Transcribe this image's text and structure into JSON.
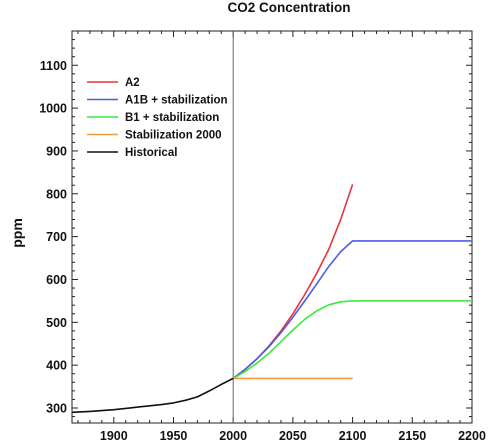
{
  "chart_data": {
    "type": "line",
    "title": "CO2 Concentration",
    "xlabel": "",
    "ylabel": "ppm",
    "xlim": [
      1865,
      2200
    ],
    "ylim": [
      265,
      1180
    ],
    "x_ticks": [
      1900,
      1950,
      2000,
      2050,
      2100,
      2150,
      2200
    ],
    "y_ticks": [
      300,
      400,
      500,
      600,
      700,
      800,
      900,
      1000,
      1100
    ],
    "reference_line_x": 2000,
    "legend_position": "top-left",
    "grid": false,
    "series": [
      {
        "name": "A2",
        "color": "#e8323c",
        "x": [
          2000,
          2010,
          2020,
          2030,
          2040,
          2050,
          2060,
          2070,
          2080,
          2090,
          2100
        ],
        "y": [
          369,
          390,
          415,
          445,
          480,
          520,
          565,
          615,
          670,
          740,
          822
        ]
      },
      {
        "name": "A1B + stabilization",
        "color": "#4d5ce6",
        "x": [
          2000,
          2010,
          2020,
          2030,
          2040,
          2050,
          2060,
          2070,
          2080,
          2090,
          2100,
          2150,
          2200
        ],
        "y": [
          369,
          390,
          415,
          443,
          476,
          512,
          550,
          590,
          630,
          665,
          690,
          690,
          690
        ]
      },
      {
        "name": "B1 + stabilization",
        "color": "#3cea3c",
        "x": [
          2000,
          2010,
          2020,
          2030,
          2040,
          2050,
          2060,
          2070,
          2080,
          2090,
          2100,
          2150,
          2200
        ],
        "y": [
          369,
          385,
          405,
          428,
          455,
          482,
          507,
          527,
          541,
          548,
          550,
          550,
          550
        ]
      },
      {
        "name": "Stabilization 2000",
        "color": "#f29a3a",
        "x": [
          2000,
          2100
        ],
        "y": [
          369,
          369
        ]
      },
      {
        "name": "Historical",
        "color": "#111111",
        "x": [
          1865,
          1880,
          1900,
          1920,
          1940,
          1950,
          1960,
          1970,
          1980,
          1990,
          2000
        ],
        "y": [
          290,
          292,
          296,
          302,
          308,
          312,
          318,
          326,
          340,
          355,
          369
        ]
      }
    ]
  }
}
